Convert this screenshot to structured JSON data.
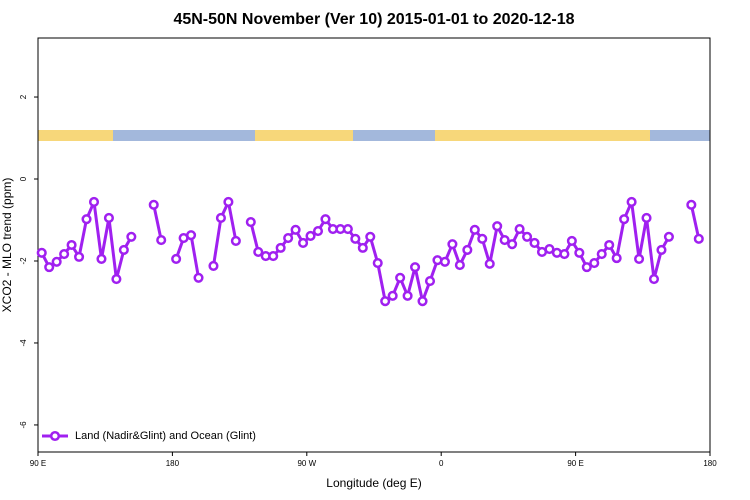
{
  "chart_data": {
    "type": "line",
    "title": "45N-50N November (Ver 10)   2015-01-01 to 2020-12-18",
    "x_label": "Longitude (deg E)",
    "y_label": "XCO2 - MLO trend (ppm)",
    "xlim": [
      90,
      540
    ],
    "xticks": [
      {
        "value": 90,
        "label": "90 E"
      },
      180,
      {
        "value": 270,
        "label": "90 W"
      },
      {
        "value": 360,
        "label": "0"
      },
      {
        "value": 450,
        "label": "90 E"
      },
      180.0001
    ],
    "ylim": [
      -6.66,
      3.44
    ],
    "yticks": [
      -6,
      -4,
      -2,
      0,
      2
    ],
    "legend": "bottom-left",
    "x": [
      92.5,
      97.5,
      102.5,
      107.5,
      112.5,
      117.5,
      122.5,
      127.5,
      132.5,
      137.5,
      142.5,
      147.5,
      152.5,
      157.5,
      162.5,
      167.5,
      172.5,
      177.5,
      182.5,
      187.5,
      192.5,
      197.5,
      202.5,
      207.5,
      212.5,
      217.5,
      222.5,
      227.5,
      232.5,
      237.5,
      242.5,
      247.5,
      252.5,
      257.5,
      262.5,
      267.5,
      272.5,
      277.5,
      282.5,
      287.5,
      292.5,
      297.5,
      302.5,
      307.5,
      312.5,
      317.5,
      322.5,
      327.5,
      332.5,
      337.5,
      342.5,
      347.5,
      352.5,
      357.5,
      362.5,
      367.5,
      372.5,
      377.5,
      382.5,
      387.5,
      392.5,
      397.5,
      402.5,
      407.5,
      412.5,
      417.5,
      422.5,
      427.5,
      432.5,
      437.5,
      442.5,
      447.5,
      452.5,
      457.5,
      462.5,
      467.5,
      472.5,
      477.5,
      482.5,
      487.5,
      492.5,
      497.5,
      502.5,
      507.5,
      512.5,
      517.5,
      522.5,
      527.5,
      532.5
    ],
    "series": [
      {
        "name": "Land (Nadir&Glint) and Ocean (Glint)",
        "color": "#a020f0",
        "values": [
          -1.8,
          -2.15,
          -2.02,
          -1.83,
          -1.61,
          -1.9,
          -0.98,
          -0.56,
          -1.95,
          -0.95,
          -2.44,
          -1.73,
          -1.41,
          null,
          null,
          -0.63,
          -1.49,
          null,
          -1.95,
          -1.44,
          -1.37,
          -2.41,
          null,
          -2.12,
          -0.95,
          -0.56,
          -1.51,
          null,
          -1.05,
          -1.78,
          -1.88,
          -1.88,
          -1.68,
          -1.44,
          -1.24,
          -1.56,
          -1.39,
          -1.27,
          -0.98,
          -1.22,
          -1.22,
          -1.22,
          -1.46,
          -1.68,
          -1.41,
          -2.05,
          -2.98,
          -2.85,
          -2.41,
          -2.85,
          -2.15,
          -2.98,
          -2.49,
          -1.98,
          -2.02,
          -1.59,
          -2.1,
          -1.73,
          -1.24,
          -1.46,
          -2.07,
          -1.15,
          -1.49,
          -1.59,
          -1.22,
          -1.41,
          -1.56,
          -1.78,
          -1.71,
          -1.8,
          -1.83,
          -1.51,
          -1.8,
          -2.15,
          -2.05,
          -1.83,
          -1.61,
          -1.93,
          -0.98,
          -0.56,
          -1.95,
          -0.95,
          -2.44,
          -1.73,
          -1.41,
          null,
          null,
          -0.63,
          -1.46
        ]
      }
    ]
  }
}
